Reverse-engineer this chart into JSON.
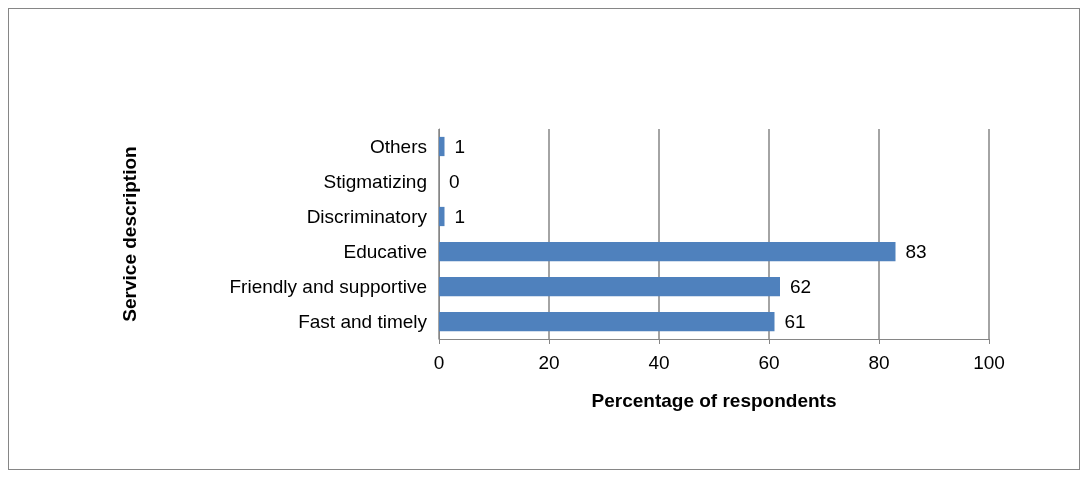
{
  "chart_data": {
    "type": "bar",
    "orientation": "horizontal",
    "categories": [
      "Others",
      "Stigmatizing",
      "Discriminatory",
      "Educative",
      "Friendly and supportive",
      "Fast and timely"
    ],
    "values": [
      1,
      0,
      1,
      83,
      62,
      61
    ],
    "color": "#4f81bd",
    "data_labels": true,
    "xlim": [
      0,
      100
    ],
    "xticks": [
      0,
      20,
      40,
      60,
      80,
      100
    ],
    "grid": "x",
    "xlabel": "Percentage of respondents",
    "ylabel": "Service description"
  }
}
